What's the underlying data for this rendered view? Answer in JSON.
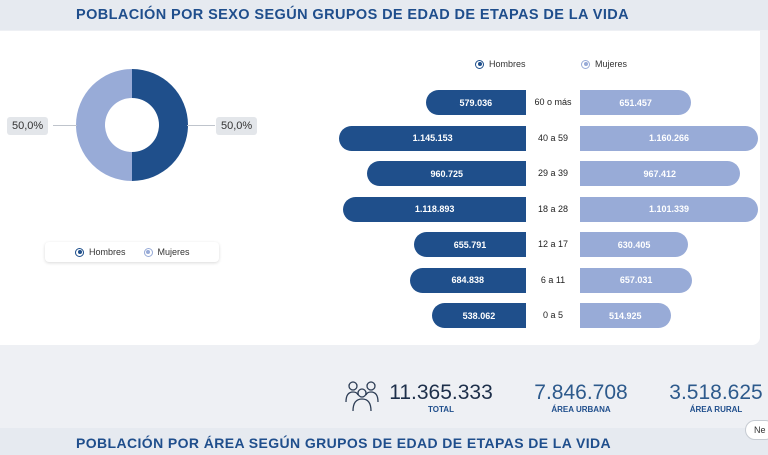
{
  "header": {
    "title": "POBLACIÓN POR SEXO SEGÚN GRUPOS DE EDAD DE ETAPAS DE LA VIDA"
  },
  "colors": {
    "hombres": "#1f4f8b",
    "mujeres": "#98abd7",
    "title": "#1f4e8c"
  },
  "donut": {
    "label_left": "50,0%",
    "label_right": "50,0%"
  },
  "legend": {
    "hombres": "Hombres",
    "mujeres": "Mujeres"
  },
  "chart_data": [
    {
      "type": "pie",
      "categories": [
        "Hombres",
        "Mujeres"
      ],
      "values": [
        50.0,
        50.0
      ],
      "data_labels": [
        "50,0%",
        "50,0%"
      ],
      "legend_position": "bottom"
    },
    {
      "type": "bar",
      "orientation": "horizontal-butterfly",
      "categories": [
        "60 o más",
        "40 a 59",
        "29 a 39",
        "18 a 28",
        "12 a 17",
        "6 a 11",
        "0 a 5"
      ],
      "series": [
        {
          "name": "Hombres",
          "values": [
            579036,
            1145153,
            960725,
            1118893,
            655791,
            684838,
            538062
          ],
          "labels": [
            "579.036",
            "1.145.153",
            "960.725",
            "1.118.893",
            "655.791",
            "684.838",
            "538.062"
          ]
        },
        {
          "name": "Mujeres",
          "values": [
            651457,
            1160266,
            967412,
            1101339,
            630405,
            657031,
            514925
          ],
          "labels": [
            "651.457",
            "1.160.266",
            "967.412",
            "1.101.339",
            "630.405",
            "657.031",
            "514.925"
          ]
        }
      ],
      "legend_position": "top"
    }
  ],
  "stats": {
    "total_value": "11.365.333",
    "total_label": "TOTAL",
    "urban_value": "7.846.708",
    "urban_label": "ÁREA URBANA",
    "rural_value": "3.518.625",
    "rural_label": "ÁREA RURAL",
    "icon": "people-group-icon"
  },
  "footer": {
    "title": "POBLACIÓN POR ÁREA SEGÚN GRUPOS DE EDAD DE ETAPAS DE LA VIDA",
    "chip": "Ne"
  }
}
